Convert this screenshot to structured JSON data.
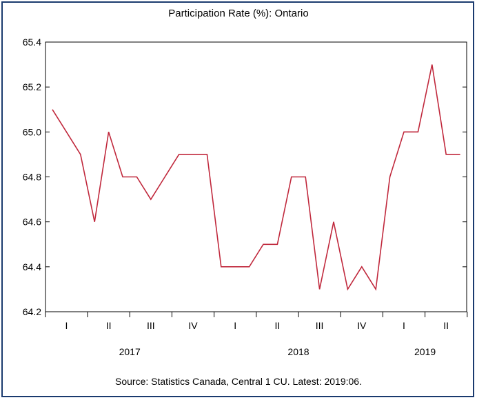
{
  "chart_data": {
    "type": "line",
    "title": "Participation Rate (%): Ontario",
    "source": "Source: Statistics Canada, Central 1 CU. Latest: 2019:06.",
    "xlabel": "",
    "ylabel": "",
    "ylim": [
      64.2,
      65.4
    ],
    "yticks": [
      "64.2",
      "64.4",
      "64.6",
      "64.8",
      "65.0",
      "65.2",
      "65.4"
    ],
    "grid": false,
    "quarter_labels": [
      "I",
      "II",
      "III",
      "IV",
      "I",
      "II",
      "III",
      "IV",
      "I",
      "II"
    ],
    "year_labels": [
      "2017",
      "2018",
      "2019"
    ],
    "series": [
      {
        "color": "#c0283c",
        "x": [
          "2017:01",
          "2017:02",
          "2017:03",
          "2017:04",
          "2017:05",
          "2017:06",
          "2017:07",
          "2017:08",
          "2017:09",
          "2017:10",
          "2017:11",
          "2017:12",
          "2018:01",
          "2018:02",
          "2018:03",
          "2018:04",
          "2018:05",
          "2018:06",
          "2018:07",
          "2018:08",
          "2018:09",
          "2018:10",
          "2018:11",
          "2018:12",
          "2019:01",
          "2019:02",
          "2019:03",
          "2019:04",
          "2019:05",
          "2019:06"
        ],
        "values": [
          65.1,
          65.0,
          64.9,
          64.6,
          65.0,
          64.8,
          64.8,
          64.7,
          64.8,
          64.9,
          64.9,
          64.9,
          64.4,
          64.4,
          64.4,
          64.5,
          64.5,
          64.8,
          64.8,
          64.3,
          64.6,
          64.3,
          64.4,
          64.3,
          64.8,
          65.0,
          65.0,
          65.3,
          64.9,
          64.9
        ]
      }
    ]
  }
}
